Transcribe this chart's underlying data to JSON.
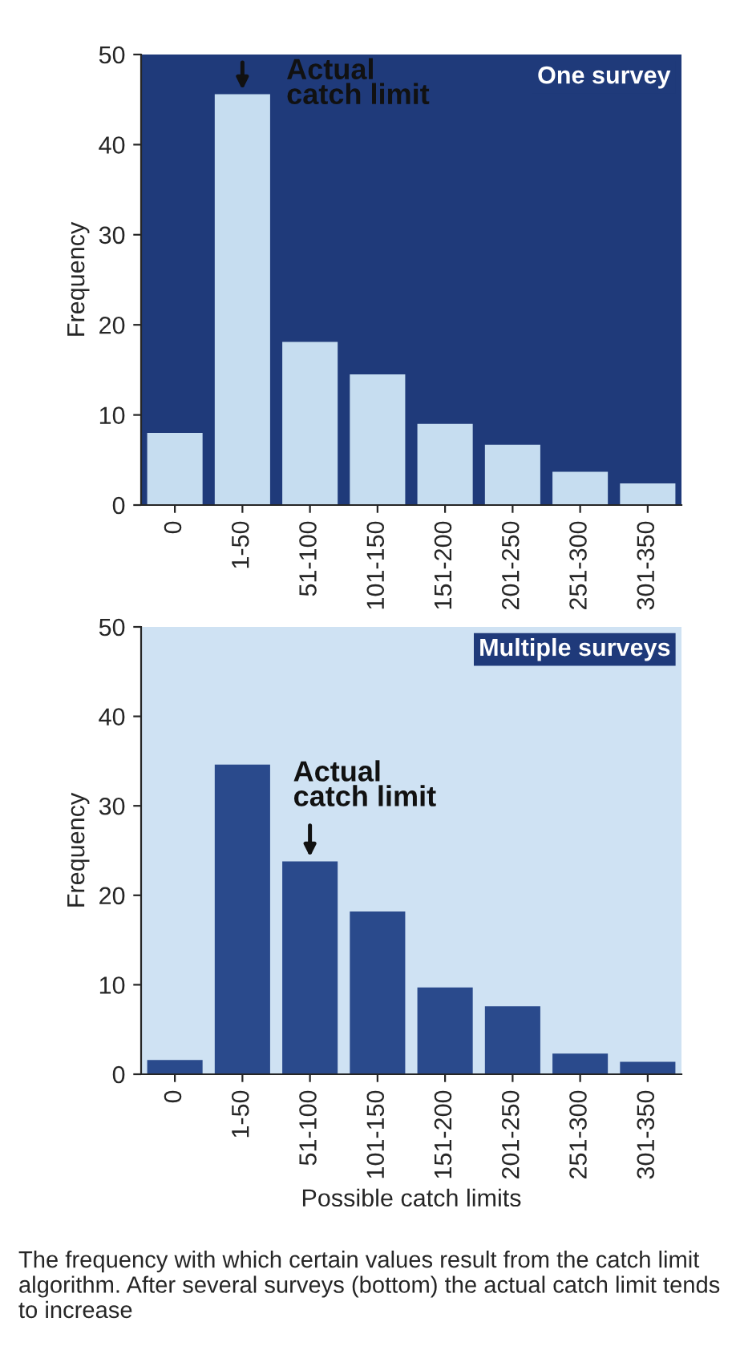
{
  "chart_data": [
    {
      "type": "bar",
      "title": "One survey",
      "ylabel": "Frequency",
      "categories": [
        "0",
        "1-50",
        "51-100",
        "101-150",
        "151-200",
        "201-250",
        "251-300",
        "301-350"
      ],
      "values": [
        8.0,
        45.6,
        18.1,
        14.5,
        9.0,
        6.7,
        3.7,
        2.4
      ],
      "color": "#c6ddf0",
      "ylim": [
        0,
        50
      ],
      "yticks": [
        0,
        10,
        20,
        30,
        40,
        50
      ],
      "grid": false,
      "annotations": [
        {
          "text": "Actual\ncatch limit",
          "x": "1-50",
          "y": 45.6
        }
      ]
    },
    {
      "type": "bar",
      "title": "Multiple surveys",
      "ylabel": "Frequency",
      "xlabel": "Possible catch limits",
      "categories": [
        "0",
        "1-50",
        "51-100",
        "101-150",
        "151-200",
        "201-250",
        "251-300",
        "301-350"
      ],
      "values": [
        1.6,
        34.6,
        23.8,
        18.2,
        9.7,
        7.6,
        2.3,
        1.4
      ],
      "color": "#2a4a8c",
      "ylim": [
        0,
        50
      ],
      "yticks": [
        0,
        10,
        20,
        30,
        40,
        50
      ],
      "grid": false,
      "annotations": [
        {
          "text": "Actual\ncatch limit",
          "x": "51-100",
          "y": 23.8
        },
        "The frequency with which certain values result from the catch limit algorithm. After several surveys (bottom) the actual catch limit tends to increase"
      ]
    }
  ]
}
